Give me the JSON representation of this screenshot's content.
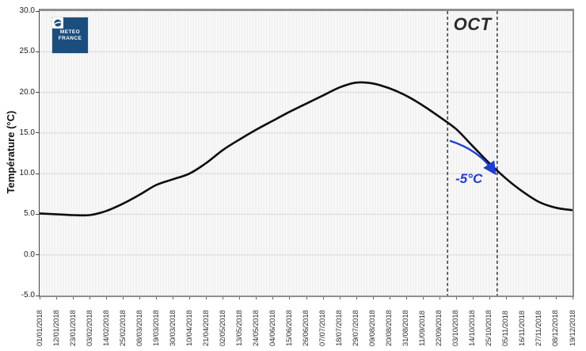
{
  "logo": {
    "name": "Météo France",
    "line1": "METEO",
    "line2": "FRANCE",
    "bg_color": "#1b4e7e"
  },
  "chart_data": {
    "type": "line",
    "title": "",
    "xlabel": "",
    "ylabel": "Température (°C)",
    "ylim": [
      -5,
      30
    ],
    "yticks": [
      "30.0",
      "25.0",
      "20.0",
      "15.0",
      "10.0",
      "5.0",
      "0.0",
      "-5.0"
    ],
    "grid": "fine vertical stripes + light horizontal lines every 5°C",
    "legend_position": "none",
    "categories": [
      "01/01/2018",
      "12/01/2018",
      "23/01/2018",
      "03/02/2018",
      "14/02/2018",
      "25/02/2018",
      "08/03/2018",
      "19/03/2018",
      "30/03/2018",
      "10/04/2018",
      "21/04/2018",
      "02/05/2018",
      "13/05/2018",
      "24/05/2018",
      "04/06/2018",
      "15/06/2018",
      "26/06/2018",
      "07/07/2018",
      "18/07/2018",
      "29/07/2018",
      "09/08/2018",
      "20/08/2018",
      "31/08/2018",
      "11/09/2018",
      "22/09/2018",
      "03/10/2018",
      "14/10/2018",
      "25/10/2018",
      "05/11/2018",
      "16/11/2018",
      "27/11/2018",
      "08/12/2018",
      "19/12/2018"
    ],
    "values": [
      5.1,
      5.0,
      4.9,
      4.9,
      5.4,
      6.3,
      7.4,
      8.6,
      9.3,
      10.0,
      11.3,
      12.9,
      14.2,
      15.4,
      16.5,
      17.6,
      18.6,
      19.6,
      20.6,
      21.2,
      21.1,
      20.5,
      19.6,
      18.4,
      17.0,
      15.5,
      13.4,
      11.3,
      9.4,
      7.8,
      6.5,
      5.8,
      5.5
    ],
    "line_color": "#0d0d0d",
    "annotations": {
      "vlines": [
        {
          "x": 24.49,
          "style": "dashed",
          "color": "#3c3c3c"
        },
        {
          "x": 27.48,
          "style": "dashed",
          "color": "#3c3c3c"
        }
      ],
      "month_label": {
        "text": "OCT",
        "x": 25.99,
        "y": 28.3,
        "color": "#2b2b2b"
      },
      "delta_label": {
        "text": "-5°C",
        "x": 25.78,
        "y": 9.33,
        "color": "#1e3ed6"
      },
      "arrow": {
        "from": [
          24.63,
          14.05
        ],
        "ctrl": [
          26.4,
          12.9
        ],
        "to": [
          27.29,
          10.2
        ],
        "color": "#1e3ed6"
      }
    }
  }
}
